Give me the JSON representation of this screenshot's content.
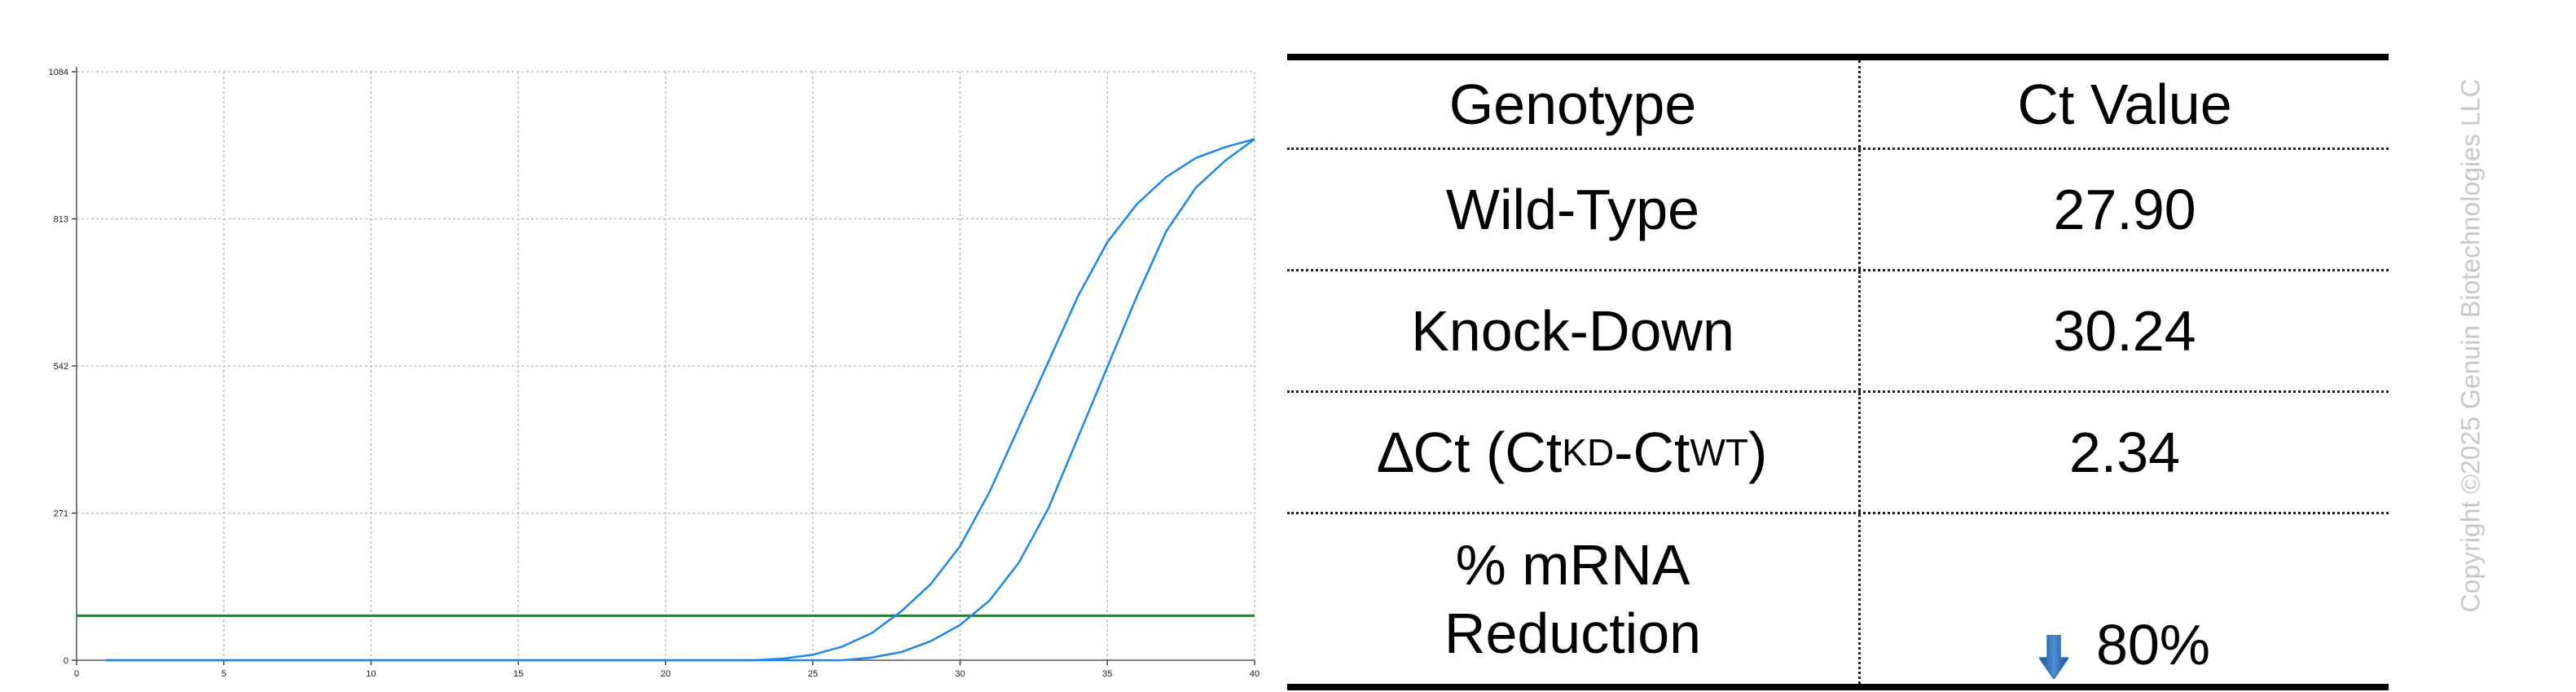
{
  "chart_data": {
    "type": "line",
    "x_ticks": [
      0,
      5,
      10,
      15,
      20,
      25,
      30,
      35,
      40
    ],
    "y_ticks": [
      0,
      271,
      542,
      813,
      1084
    ],
    "xlim": [
      0,
      40
    ],
    "ylim": [
      0,
      1084
    ],
    "grid": true,
    "threshold": 82,
    "series": [
      {
        "color": "#1e88e5",
        "x": [
          1,
          23,
          24,
          25,
          26,
          27,
          28,
          29,
          30,
          31,
          32,
          33,
          34,
          35,
          36,
          37,
          38,
          39,
          40
        ],
        "y": [
          0,
          0,
          3,
          10,
          25,
          50,
          90,
          140,
          210,
          310,
          430,
          550,
          670,
          770,
          840,
          890,
          925,
          945,
          960
        ]
      },
      {
        "color": "#1e88e5",
        "x": [
          1,
          26,
          27,
          28,
          29,
          30,
          31,
          32,
          33,
          34,
          35,
          36,
          37,
          38,
          39,
          40
        ],
        "y": [
          0,
          0,
          5,
          15,
          35,
          65,
          110,
          180,
          280,
          410,
          540,
          670,
          790,
          870,
          920,
          960
        ]
      }
    ],
    "threshold_color": "#2e7d32"
  },
  "table": {
    "headers": [
      "Genotype",
      "Ct Value"
    ],
    "rows": [
      {
        "label": "Wild-Type",
        "value": "27.90"
      },
      {
        "label": "Knock-Down",
        "value": "30.24"
      }
    ],
    "delta": {
      "prefix": "∆Ct (Ct",
      "sub1": "KD",
      "mid": "-Ct",
      "sub2": "WT",
      "suffix": ")",
      "value": "2.34"
    },
    "reduction": {
      "label_line1": "% mRNA",
      "label_line2": "Reduction",
      "value": "80%",
      "arrow_color": "#2f6fb3"
    }
  },
  "copyright": "Copyright ©2025 Genuin Biotechnologies LLC"
}
